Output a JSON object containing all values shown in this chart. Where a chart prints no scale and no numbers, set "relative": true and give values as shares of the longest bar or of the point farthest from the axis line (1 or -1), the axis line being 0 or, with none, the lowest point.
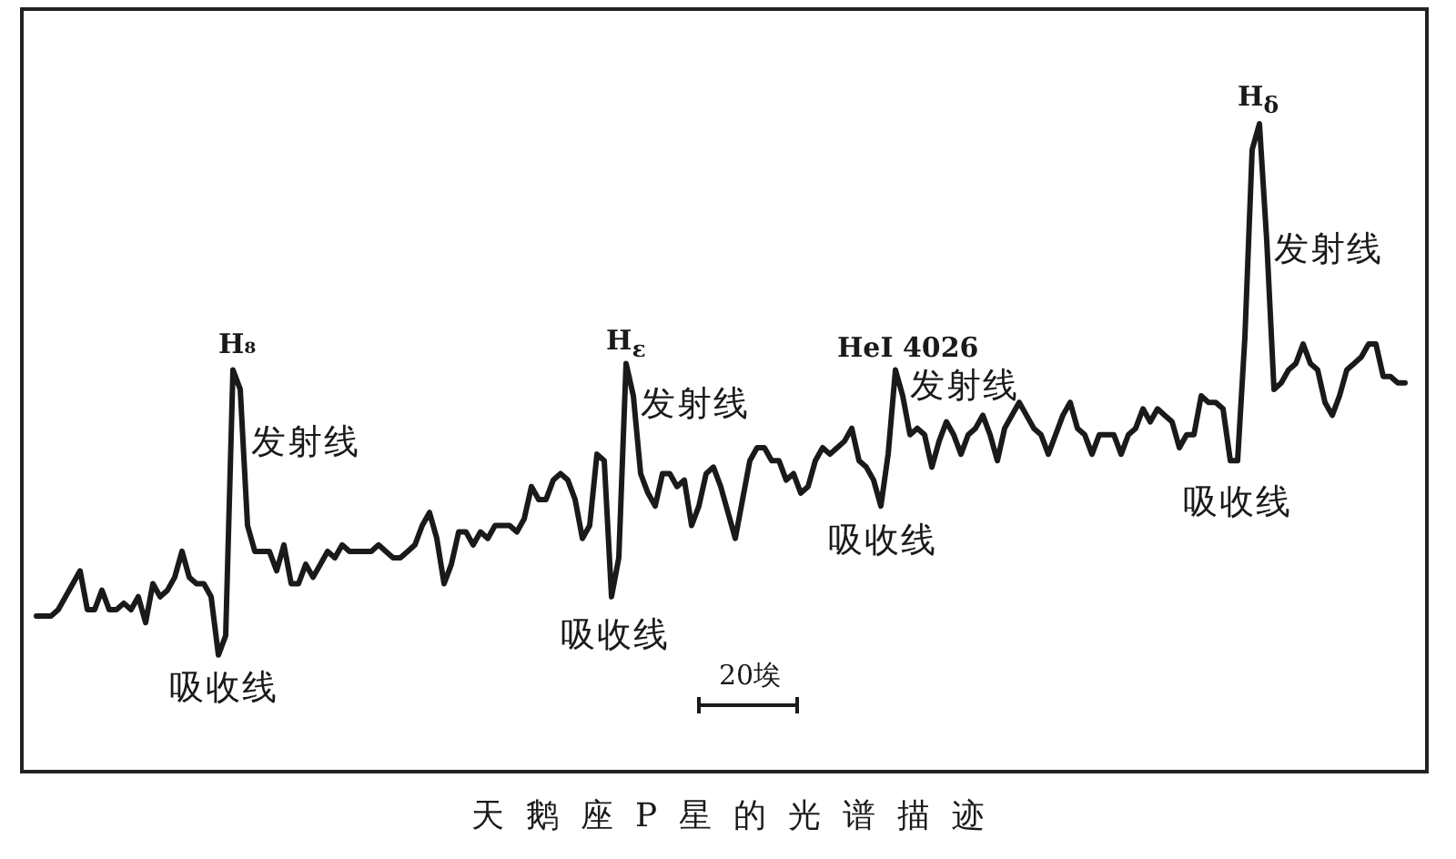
{
  "chart_data": {
    "type": "line",
    "relative": true,
    "tick_labels": false,
    "title": "天鹅座P星的光谱描迹",
    "annotations": [
      "H₈",
      "发射线",
      "吸收线",
      "H$_{ε}$",
      "发射线",
      "吸收线",
      "HeI 4026",
      "发射线",
      "吸收线",
      "H$_{δ}$",
      "发射线",
      "吸收线",
      "20埃"
    ],
    "categories": [
      null,
      null,
      null,
      null,
      null,
      null,
      null,
      null,
      null,
      null,
      null,
      null,
      null,
      null,
      null,
      null,
      null,
      null,
      null,
      null,
      null,
      null,
      null,
      null,
      null,
      null,
      null,
      null,
      null,
      null,
      null,
      null,
      null,
      null,
      null,
      null,
      null,
      null,
      null,
      null,
      null,
      null,
      null,
      null,
      null,
      null,
      null,
      null,
      null,
      null,
      null,
      null,
      null,
      null,
      null,
      null,
      null,
      null,
      null,
      null,
      null,
      null,
      null,
      null,
      null,
      null,
      null,
      null,
      null,
      null,
      null,
      null,
      null,
      null,
      null,
      null,
      null,
      null,
      null,
      null,
      null,
      null,
      null,
      null,
      null,
      null,
      null,
      null,
      null,
      null,
      null,
      null,
      null,
      null,
      null,
      null,
      null,
      null,
      null,
      null,
      null,
      null,
      null,
      null,
      null,
      null,
      null,
      null,
      null,
      null,
      null,
      null,
      null,
      null,
      null,
      null,
      null,
      null,
      null,
      null,
      null,
      null,
      null,
      null,
      null,
      null,
      null,
      null,
      null,
      null,
      null,
      null,
      null,
      null,
      null,
      null,
      null,
      null,
      null,
      null,
      null,
      null,
      null,
      null,
      null,
      null,
      null,
      null,
      null,
      null,
      null,
      null,
      null,
      null,
      null,
      null,
      null,
      null,
      null,
      null,
      null,
      null,
      null,
      null,
      null,
      null,
      null,
      null,
      null,
      null,
      null,
      null,
      null,
      null,
      null,
      null,
      null,
      null,
      null,
      null,
      null,
      null,
      null,
      null,
      null,
      null,
      null,
      null,
      null
    ],
    "series": [
      {
        "color": "#1a1a1a",
        "values": [
          0.24,
          0.24,
          0.24,
          0.25,
          0.27,
          0.29,
          0.31,
          0.25,
          0.25,
          0.28,
          0.25,
          0.25,
          0.26,
          0.25,
          0.27,
          0.23,
          0.29,
          0.27,
          0.28,
          0.3,
          0.34,
          0.3,
          0.29,
          0.29,
          0.27,
          0.18,
          0.21,
          0.62,
          0.59,
          0.38,
          0.34,
          0.34,
          0.34,
          0.31,
          0.35,
          0.29,
          0.29,
          0.32,
          0.3,
          0.32,
          0.34,
          0.33,
          0.35,
          0.34,
          0.34,
          0.34,
          0.34,
          0.35,
          0.34,
          0.33,
          0.33,
          0.34,
          0.35,
          0.38,
          0.4,
          0.36,
          0.29,
          0.32,
          0.37,
          0.37,
          0.35,
          0.37,
          0.36,
          0.38,
          0.38,
          0.38,
          0.37,
          0.39,
          0.44,
          0.42,
          0.42,
          0.45,
          0.46,
          0.45,
          0.42,
          0.36,
          0.38,
          0.49,
          0.48,
          0.27,
          0.33,
          0.63,
          0.58,
          0.46,
          0.43,
          0.41,
          0.46,
          0.46,
          0.44,
          0.45,
          0.38,
          0.41,
          0.46,
          0.47,
          0.44,
          0.4,
          0.36,
          0.42,
          0.48,
          0.5,
          0.5,
          0.48,
          0.48,
          0.45,
          0.46,
          0.43,
          0.44,
          0.48,
          0.5,
          0.49,
          0.5,
          0.51,
          0.53,
          0.48,
          0.47,
          0.45,
          0.41,
          0.49,
          0.62,
          0.58,
          0.52,
          0.53,
          0.52,
          0.47,
          0.51,
          0.54,
          0.52,
          0.49,
          0.52,
          0.53,
          0.55,
          0.52,
          0.48,
          0.53,
          0.55,
          0.57,
          0.55,
          0.53,
          0.52,
          0.49,
          0.52,
          0.55,
          0.57,
          0.53,
          0.52,
          0.49,
          0.52,
          0.52,
          0.52,
          0.49,
          0.52,
          0.53,
          0.56,
          0.54,
          0.56,
          0.55,
          0.54,
          0.5,
          0.52,
          0.52,
          0.58,
          0.57,
          0.57,
          0.56,
          0.48,
          0.48,
          0.67,
          0.96,
          1,
          0.82,
          0.59,
          0.6,
          0.62,
          0.63,
          0.66,
          0.63,
          0.62,
          0.57,
          0.55,
          0.58,
          0.62,
          0.63,
          0.64,
          0.66,
          0.66,
          0.61,
          0.61,
          0.6,
          0.6
        ]
      }
    ]
  }
}
